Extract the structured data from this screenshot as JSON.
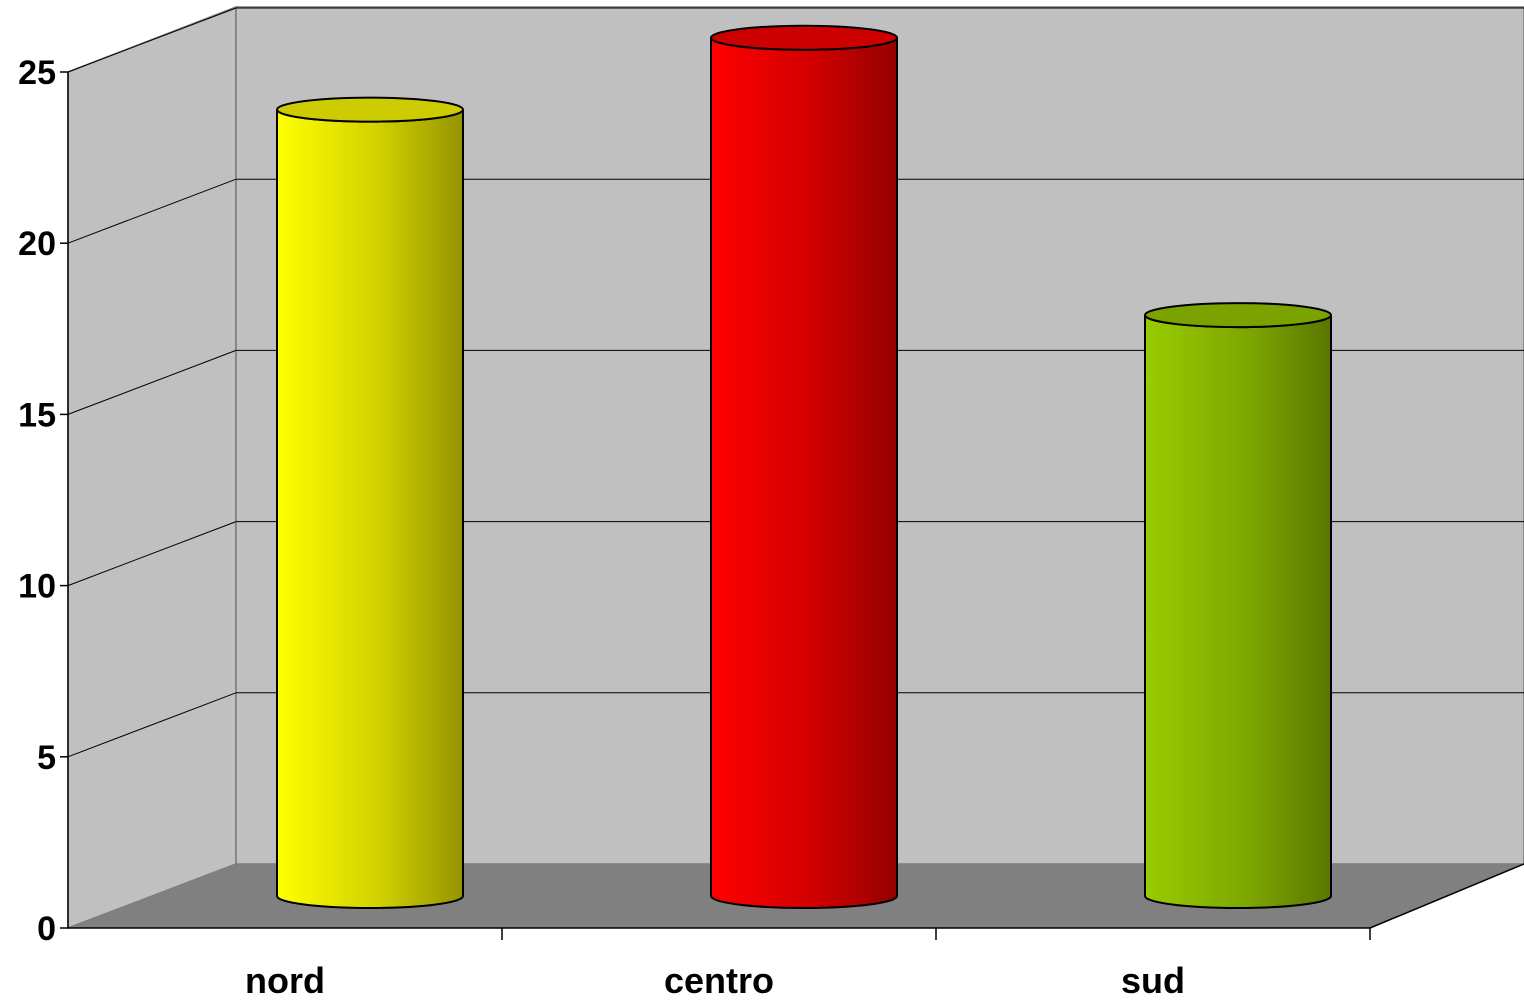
{
  "chart_data": {
    "type": "bar",
    "style": "3d-cylinder",
    "title": "",
    "xlabel": "",
    "ylabel": "",
    "categories": [
      "nord",
      "centro",
      "sud"
    ],
    "values": [
      23.2,
      25.3,
      17.2
    ],
    "colors": [
      "#ffff00",
      "#ff0000",
      "#99cc00"
    ],
    "ylim": [
      0,
      25
    ],
    "yticks": [
      "0",
      "5",
      "10",
      "15",
      "20",
      "25"
    ],
    "grid": true,
    "legend": "none",
    "wall_color": "#c0c0c0",
    "floor_color": "#808080"
  }
}
